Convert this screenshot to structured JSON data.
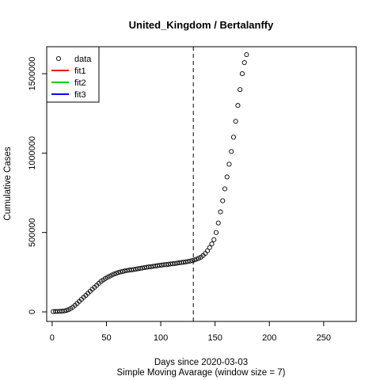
{
  "chart_data": {
    "type": "scatter",
    "title": "United_Kingdom / Bertalanffy",
    "xlabel": "Days since 2020-03-03",
    "subtitle": "Simple Moving Avarage (window size = 7)",
    "ylabel": "Cumulative Cases",
    "xlim": [
      -5,
      280
    ],
    "ylim": [
      -60000,
      1670000
    ],
    "xticks": [
      0,
      50,
      100,
      150,
      200,
      250
    ],
    "yticks": [
      0,
      500000,
      1000000,
      1500000
    ],
    "vline_x": 130,
    "vline_style": "dashed",
    "legend": {
      "position": "top-left",
      "entries": [
        {
          "label": "data",
          "symbol": "circle",
          "color": "#000000"
        },
        {
          "label": "fit1",
          "symbol": "line",
          "color": "#ff0000"
        },
        {
          "label": "fit2",
          "symbol": "line",
          "color": "#00cd00"
        },
        {
          "label": "fit3",
          "symbol": "line",
          "color": "#0000ff"
        }
      ]
    },
    "series": [
      {
        "name": "data",
        "x_start": 1,
        "x_step": 2,
        "values": [
          2000,
          2500,
          3000,
          3500,
          4500,
          6000,
          9000,
          14000,
          21000,
          30000,
          41000,
          53000,
          66000,
          79000,
          92000,
          104000,
          117000,
          130000,
          143000,
          155000,
          167000,
          180000,
          192000,
          201000,
          210000,
          218000,
          225000,
          232000,
          238000,
          243000,
          248000,
          252000,
          255000,
          258000,
          261000,
          263000,
          265000,
          267000,
          269000,
          272000,
          274000,
          276000,
          279000,
          281000,
          283000,
          285000,
          287000,
          289000,
          291000,
          293000,
          295000,
          297000,
          298000,
          300000,
          302000,
          303000,
          305000,
          307000,
          309000,
          311000,
          313000,
          315000,
          317000,
          320000,
          323000,
          327000,
          332000,
          338000,
          345000,
          355000,
          368000,
          385000,
          405000,
          428000,
          455000,
          500000,
          560000,
          630000,
          700000,
          775000,
          850000,
          930000,
          1010000,
          1100000,
          1200000,
          1300000,
          1400000,
          1500000,
          1570000,
          1620000
        ]
      }
    ]
  }
}
